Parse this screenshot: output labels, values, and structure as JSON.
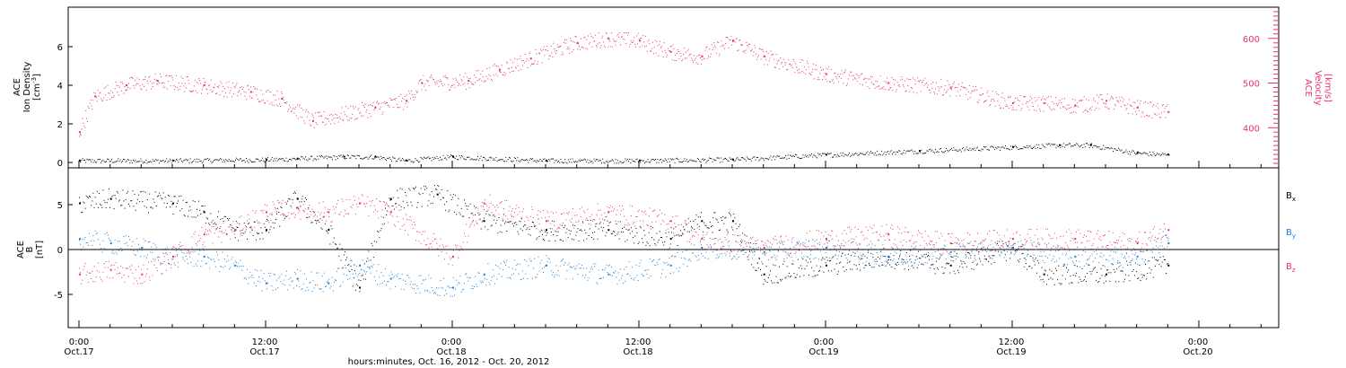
{
  "colors": {
    "density": "#000000",
    "velocity": "#e8336a",
    "bx": "#000000",
    "by": "#1b7fd8",
    "bz": "#e8336a",
    "axis": "#000000"
  },
  "panels": {
    "top": {
      "ylabel_line1": "ACE",
      "ylabel_line2": "Ion Density",
      "ylabel_units": "[cm",
      "ylabel_units_sup": "-3",
      "ylabel_units_close": "]",
      "yticks": [
        "0",
        "2",
        "4",
        "6"
      ],
      "right_label_line1": "ACE",
      "right_label_line2": "Velocity",
      "right_label_units": "[km/s]",
      "right_ticks": [
        "400",
        "500",
        "600"
      ]
    },
    "bottom": {
      "ylabel_line1": "ACE",
      "ylabel_line2": "B",
      "ylabel_units": "[nT]",
      "yticks": [
        "5",
        "0",
        "-5"
      ],
      "legend": [
        {
          "base": "B",
          "sub": "x"
        },
        {
          "base": "B",
          "sub": "y"
        },
        {
          "base": "B",
          "sub": "z"
        }
      ]
    }
  },
  "xaxis": {
    "ticks": [
      {
        "time": "0:00",
        "date": "Oct.17"
      },
      {
        "time": "12:00",
        "date": "Oct.17"
      },
      {
        "time": "0:00",
        "date": "Oct.18"
      },
      {
        "time": "12:00",
        "date": "Oct.18"
      },
      {
        "time": "0:00",
        "date": "Oct.19"
      },
      {
        "time": "12:00",
        "date": "Oct.19"
      },
      {
        "time": "0:00",
        "date": "Oct.20"
      }
    ],
    "title": "hours:minutes, Oct. 16, 2012 - Oct. 20, 2012"
  },
  "chart_data": [
    {
      "type": "scatter",
      "panel": "top",
      "xlim": [
        "2012-10-16 23:40",
        "2012-10-20 08:00"
      ],
      "left_ylim": [
        0,
        8
      ],
      "right_ylim": [
        310,
        670
      ],
      "right_scale": "linear",
      "series": [
        {
          "name": "ACE Ion Density",
          "axis": "left",
          "x": [
            "2012-10-17 00:00",
            "2012-10-17 06:00",
            "2012-10-17 12:00",
            "2012-10-17 14:00",
            "2012-10-17 17:00",
            "2012-10-17 19:00",
            "2012-10-17 21:00",
            "2012-10-18 00:00",
            "2012-10-18 06:00",
            "2012-10-18 12:00",
            "2012-10-18 18:00",
            "2012-10-19 00:00",
            "2012-10-19 06:00",
            "2012-10-19 12:00",
            "2012-10-19 15:00",
            "2012-10-19 17:00",
            "2012-10-19 20:00",
            "2012-10-19 22:00"
          ],
          "y": [
            0.1,
            0.1,
            0.15,
            0.2,
            0.3,
            0.3,
            0.1,
            0.3,
            0.1,
            0.1,
            0.15,
            0.4,
            0.6,
            0.8,
            0.9,
            0.9,
            0.5,
            0.4
          ]
        },
        {
          "name": "ACE Velocity",
          "axis": "right",
          "x": [
            "2012-10-17 00:00",
            "2012-10-17 01:00",
            "2012-10-17 03:00",
            "2012-10-17 05:00",
            "2012-10-17 08:00",
            "2012-10-17 11:00",
            "2012-10-17 13:00",
            "2012-10-17 15:00",
            "2012-10-17 19:00",
            "2012-10-17 21:00",
            "2012-10-17 22:00",
            "2012-10-18 01:00",
            "2012-10-18 03:00",
            "2012-10-18 05:00",
            "2012-10-18 08:00",
            "2012-10-18 10:00",
            "2012-10-18 12:00",
            "2012-10-18 14:00",
            "2012-10-18 16:00",
            "2012-10-18 18:00",
            "2012-10-18 20:00",
            "2012-10-19 00:00",
            "2012-10-19 04:00",
            "2012-10-19 08:00",
            "2012-10-19 12:00",
            "2012-10-19 14:00",
            "2012-10-19 16:00",
            "2012-10-19 18:00",
            "2012-10-19 20:00",
            "2012-10-19 22:00"
          ],
          "y": [
            390,
            470,
            495,
            505,
            495,
            480,
            465,
            415,
            445,
            460,
            500,
            505,
            530,
            555,
            590,
            600,
            595,
            570,
            560,
            595,
            560,
            520,
            500,
            490,
            455,
            455,
            450,
            460,
            445,
            435
          ]
        }
      ]
    },
    {
      "type": "scatter",
      "panel": "bottom",
      "xlim": [
        "2012-10-16 23:40",
        "2012-10-20 08:00"
      ],
      "ylim": [
        -9,
        9
      ],
      "ylabel": "B [nT]",
      "series": [
        {
          "name": "Bx",
          "x": [
            "2012-10-17 00:00",
            "2012-10-17 02:00",
            "2012-10-17 06:00",
            "2012-10-17 08:00",
            "2012-10-17 10:00",
            "2012-10-17 12:00",
            "2012-10-17 14:00",
            "2012-10-17 16:00",
            "2012-10-17 18:00",
            "2012-10-17 20:00",
            "2012-10-17 23:00",
            "2012-10-18 02:00",
            "2012-10-18 06:00",
            "2012-10-18 10:00",
            "2012-10-18 14:00",
            "2012-10-18 16:00",
            "2012-10-18 18:00",
            "2012-10-18 20:00",
            "2012-10-19 00:00",
            "2012-10-19 04:00",
            "2012-10-19 08:00",
            "2012-10-19 12:00",
            "2012-10-19 14:00",
            "2012-10-19 18:00",
            "2012-10-19 22:00"
          ],
          "y": [
            5,
            5.5,
            5,
            4,
            2,
            2,
            5.5,
            2,
            -4.5,
            5.5,
            6,
            3,
            2,
            2,
            1,
            3,
            3,
            -3,
            -2,
            -1,
            -2,
            0,
            -3,
            -3,
            -2
          ]
        },
        {
          "name": "By",
          "x": [
            "2012-10-17 00:00",
            "2012-10-17 02:00",
            "2012-10-17 04:00",
            "2012-10-17 06:00",
            "2012-10-17 08:00",
            "2012-10-17 10:00",
            "2012-10-17 12:00",
            "2012-10-17 14:00",
            "2012-10-17 16:00",
            "2012-10-17 18:00",
            "2012-10-17 20:00",
            "2012-10-18 00:00",
            "2012-10-18 02:00",
            "2012-10-18 06:00",
            "2012-10-18 10:00",
            "2012-10-18 14:00",
            "2012-10-18 16:00",
            "2012-10-18 20:00",
            "2012-10-19 00:00",
            "2012-10-19 04:00",
            "2012-10-19 08:00",
            "2012-10-19 12:00",
            "2012-10-19 16:00",
            "2012-10-19 20:00",
            "2012-10-19 22:00"
          ],
          "y": [
            1,
            0.5,
            0,
            -1,
            -1,
            -2,
            -4,
            -3.5,
            -4,
            -2,
            -3.5,
            -4.5,
            -3,
            -2,
            -3,
            -2,
            0,
            -0.5,
            0,
            -1,
            -0.5,
            0,
            -1,
            -1,
            0.5
          ]
        },
        {
          "name": "Bz",
          "x": [
            "2012-10-17 00:00",
            "2012-10-17 02:00",
            "2012-10-17 04:00",
            "2012-10-17 06:00",
            "2012-10-17 08:00",
            "2012-10-17 10:00",
            "2012-10-17 12:00",
            "2012-10-17 14:00",
            "2012-10-17 16:00",
            "2012-10-17 18:00",
            "2012-10-17 20:00",
            "2012-10-18 00:00",
            "2012-10-18 02:00",
            "2012-10-18 06:00",
            "2012-10-18 10:00",
            "2012-10-18 14:00",
            "2012-10-18 16:00",
            "2012-10-18 20:00",
            "2012-10-19 00:00",
            "2012-10-19 04:00",
            "2012-10-19 08:00",
            "2012-10-19 12:00",
            "2012-10-19 16:00",
            "2012-10-19 20:00",
            "2012-10-19 22:00"
          ],
          "y": [
            -3,
            -2.5,
            -3,
            -1,
            1.5,
            2,
            4,
            4.5,
            4,
            5,
            4,
            -1,
            5,
            3,
            4,
            3,
            1,
            0,
            1,
            1.5,
            0.5,
            1,
            1,
            0.5,
            2
          ]
        }
      ]
    }
  ]
}
